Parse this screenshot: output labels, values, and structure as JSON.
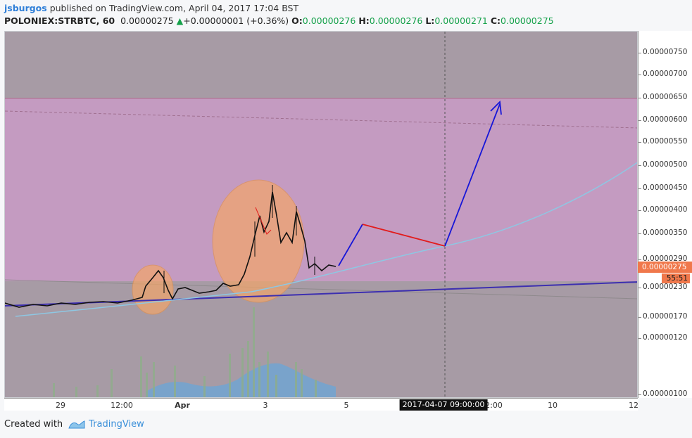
{
  "header": {
    "author": "jsburgos",
    "published_text": "published on TradingView.com, April 04, 2017 17:04 BST"
  },
  "ohlc": {
    "symbol": "POLONIEX:STRBTC, 60",
    "last": "0.00000275",
    "change": "+0.00000001 (+0.36%)",
    "o_label": "O:",
    "o": "0.00000276",
    "h_label": "H:",
    "h": "0.00000276",
    "l_label": "L:",
    "l": "0.00000271",
    "c_label": "C:",
    "c": "0.00000275"
  },
  "price_axis": {
    "ticks": [
      "0.00000750",
      "0.00000700",
      "0.00000650",
      "0.00000600",
      "0.00000550",
      "0.00000500",
      "0.00000450",
      "0.00000400",
      "0.00000350",
      "0.00000290",
      "0.00000230",
      "0.00000170",
      "0.00000120",
      "0.00000100"
    ],
    "current_price": "0.00000275",
    "countdown": "55:51"
  },
  "time_axis": {
    "ticks": [
      "29",
      "12:00",
      "Apr",
      "3",
      "5",
      "12:00",
      "10",
      "12"
    ],
    "crosshair_label": "2017-04-07 09:00:00"
  },
  "footer": {
    "created_with": "Created with",
    "brand": "TradingView"
  },
  "colors": {
    "zone_fill": "#c99bc6",
    "ellipse_fill": "#f3a66a",
    "trend_line": "#3d2fb0",
    "arrow": "#1616d8",
    "red_line": "#e21b1b",
    "ma_curve": "#8ec7e3",
    "price_tag": "#f0784b"
  }
}
